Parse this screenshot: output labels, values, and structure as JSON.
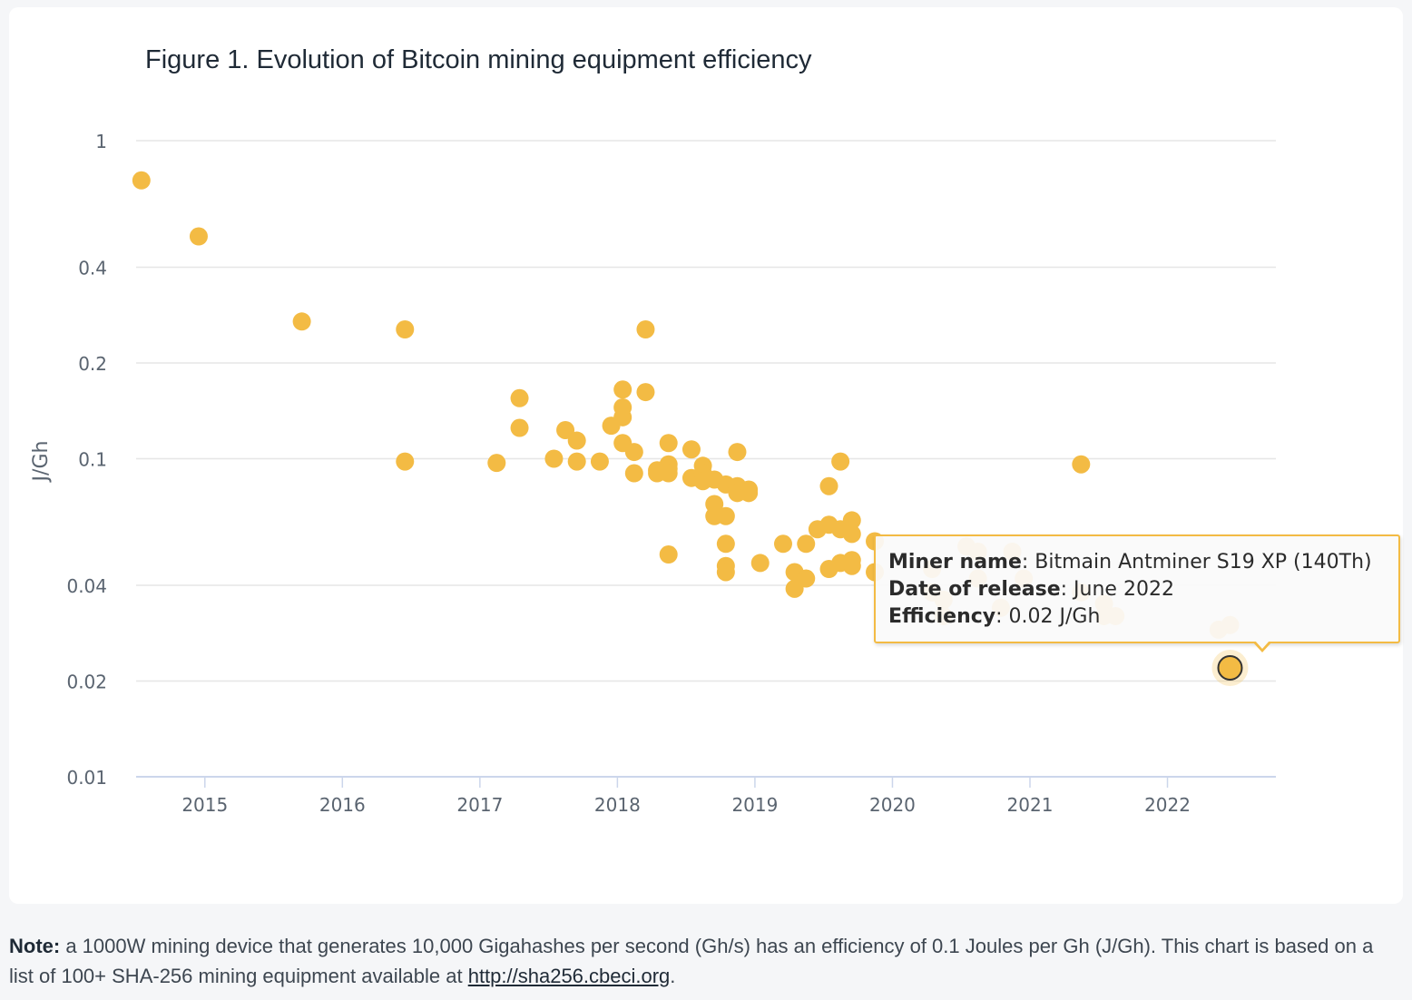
{
  "chart_data": {
    "type": "scatter",
    "title": "Figure 1. Evolution of Bitcoin mining equipment efficiency",
    "ylabel": "J/Gh",
    "yscale": "log",
    "ylim": [
      0.01,
      1
    ],
    "yticks": [
      "1",
      "0.4",
      "0.2",
      "0.1",
      "0.04",
      "0.02",
      "0.01"
    ],
    "ytick_values": [
      1,
      0.4,
      0.2,
      0.1,
      0.04,
      0.02,
      0.01
    ],
    "xticks": [
      "2015",
      "2016",
      "2017",
      "2018",
      "2019",
      "2020",
      "2021",
      "2022"
    ],
    "xlim": [
      "2014-07-01",
      "2022-10-15"
    ],
    "grid": true,
    "marker_color": "#f3bb44",
    "points": [
      {
        "x": "2014-07",
        "y": 0.75
      },
      {
        "x": "2014-12",
        "y": 0.5
      },
      {
        "x": "2015-09",
        "y": 0.27
      },
      {
        "x": "2016-06",
        "y": 0.255
      },
      {
        "x": "2016-06",
        "y": 0.098
      },
      {
        "x": "2017-02",
        "y": 0.097
      },
      {
        "x": "2017-04",
        "y": 0.155
      },
      {
        "x": "2017-04",
        "y": 0.125
      },
      {
        "x": "2017-07",
        "y": 0.1
      },
      {
        "x": "2017-08",
        "y": 0.123
      },
      {
        "x": "2017-09",
        "y": 0.114
      },
      {
        "x": "2017-09",
        "y": 0.098
      },
      {
        "x": "2017-11",
        "y": 0.098
      },
      {
        "x": "2017-12",
        "y": 0.127
      },
      {
        "x": "2018-01",
        "y": 0.165
      },
      {
        "x": "2018-01",
        "y": 0.145
      },
      {
        "x": "2018-01",
        "y": 0.135
      },
      {
        "x": "2018-01",
        "y": 0.112
      },
      {
        "x": "2018-02",
        "y": 0.105
      },
      {
        "x": "2018-02",
        "y": 0.09
      },
      {
        "x": "2018-03",
        "y": 0.255
      },
      {
        "x": "2018-03",
        "y": 0.162
      },
      {
        "x": "2018-04",
        "y": 0.092
      },
      {
        "x": "2018-04",
        "y": 0.09
      },
      {
        "x": "2018-05",
        "y": 0.112
      },
      {
        "x": "2018-05",
        "y": 0.096
      },
      {
        "x": "2018-05",
        "y": 0.093
      },
      {
        "x": "2018-05",
        "y": 0.09
      },
      {
        "x": "2018-05",
        "y": 0.05
      },
      {
        "x": "2018-07",
        "y": 0.107
      },
      {
        "x": "2018-07",
        "y": 0.087
      },
      {
        "x": "2018-08",
        "y": 0.095
      },
      {
        "x": "2018-08",
        "y": 0.09
      },
      {
        "x": "2018-08",
        "y": 0.085
      },
      {
        "x": "2018-09",
        "y": 0.086
      },
      {
        "x": "2018-09",
        "y": 0.072
      },
      {
        "x": "2018-09",
        "y": 0.066
      },
      {
        "x": "2018-10",
        "y": 0.083
      },
      {
        "x": "2018-10",
        "y": 0.066
      },
      {
        "x": "2018-10",
        "y": 0.054
      },
      {
        "x": "2018-10",
        "y": 0.046
      },
      {
        "x": "2018-10",
        "y": 0.044
      },
      {
        "x": "2018-11",
        "y": 0.105
      },
      {
        "x": "2018-11",
        "y": 0.082
      },
      {
        "x": "2018-11",
        "y": 0.078
      },
      {
        "x": "2018-12",
        "y": 0.08
      },
      {
        "x": "2018-12",
        "y": 0.078
      },
      {
        "x": "2019-01",
        "y": 0.047
      },
      {
        "x": "2019-03",
        "y": 0.054
      },
      {
        "x": "2019-04",
        "y": 0.044
      },
      {
        "x": "2019-04",
        "y": 0.039
      },
      {
        "x": "2019-05",
        "y": 0.054
      },
      {
        "x": "2019-05",
        "y": 0.042
      },
      {
        "x": "2019-06",
        "y": 0.06
      },
      {
        "x": "2019-07",
        "y": 0.082
      },
      {
        "x": "2019-07",
        "y": 0.062
      },
      {
        "x": "2019-07",
        "y": 0.045
      },
      {
        "x": "2019-08",
        "y": 0.098
      },
      {
        "x": "2019-08",
        "y": 0.06
      },
      {
        "x": "2019-08",
        "y": 0.047
      },
      {
        "x": "2019-09",
        "y": 0.064
      },
      {
        "x": "2019-09",
        "y": 0.058
      },
      {
        "x": "2019-09",
        "y": 0.048
      },
      {
        "x": "2019-09",
        "y": 0.046
      },
      {
        "x": "2019-11",
        "y": 0.055
      },
      {
        "x": "2019-11",
        "y": 0.044
      },
      {
        "x": "2020-04",
        "y": 0.045
      },
      {
        "x": "2020-04",
        "y": 0.038
      },
      {
        "x": "2020-05",
        "y": 0.036
      },
      {
        "x": "2020-05",
        "y": 0.032
      },
      {
        "x": "2020-07",
        "y": 0.053
      },
      {
        "x": "2020-08",
        "y": 0.051
      },
      {
        "x": "2020-08",
        "y": 0.042
      },
      {
        "x": "2020-10",
        "y": 0.034
      },
      {
        "x": "2020-11",
        "y": 0.051
      },
      {
        "x": "2020-12",
        "y": 0.042
      },
      {
        "x": "2021-05",
        "y": 0.096
      },
      {
        "x": "2021-05",
        "y": 0.038
      },
      {
        "x": "2021-07",
        "y": 0.035
      },
      {
        "x": "2021-07",
        "y": 0.032
      },
      {
        "x": "2021-08",
        "y": 0.032
      },
      {
        "x": "2022-05",
        "y": 0.029
      },
      {
        "x": "2022-06",
        "y": 0.03
      },
      {
        "x": "2022-06",
        "y": 0.022,
        "highlighted": true
      }
    ],
    "tooltip": {
      "miner_name_label": "Miner name",
      "miner_name_value": ": Bitmain Antminer S19 XP (140Th)",
      "date_label": "Date of release",
      "date_value": ": June 2022",
      "efficiency_label": "Efficiency",
      "efficiency_value": ": 0.02 J/Gh"
    }
  },
  "note": {
    "label": "Note:",
    "text": " a 1000W mining device that generates 10,000 Gigahashes per second (Gh/s) has an efficiency of 0.1 Joules per Gh (J/Gh). This chart is based on a list of 100+ SHA-256 mining equipment available at ",
    "link": "http://sha256.cbeci.org",
    "end": "."
  }
}
